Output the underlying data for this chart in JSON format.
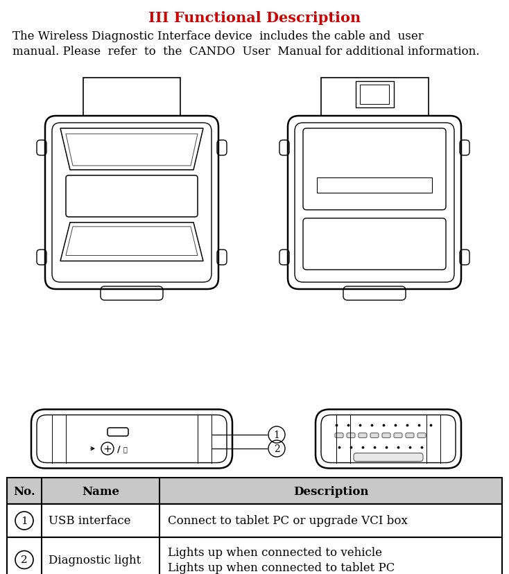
{
  "title": "III Functional Description",
  "title_color": "#CC0000",
  "body_text_line1": "The Wireless Diagnostic Interface device  includes the cable and  user",
  "body_text_line2": "manual. Please  refer  to  the  CANDO  User  Manual for additional information.",
  "table_headers": [
    "No.",
    "Name",
    "Description"
  ],
  "table_rows": [
    [
      "①",
      "USB interface",
      "Connect to tablet PC or upgrade VCI box"
    ],
    [
      "②",
      "Diagnostic light",
      "Lights up when connected to vehicle\nLights up when connected to tablet PC"
    ]
  ],
  "bg_color": "#ffffff",
  "text_color": "#000000",
  "title_fontsize": 15,
  "body_fontsize": 12,
  "table_fontsize": 12,
  "fig_w": 7.34,
  "fig_h": 8.29,
  "dpi": 100
}
